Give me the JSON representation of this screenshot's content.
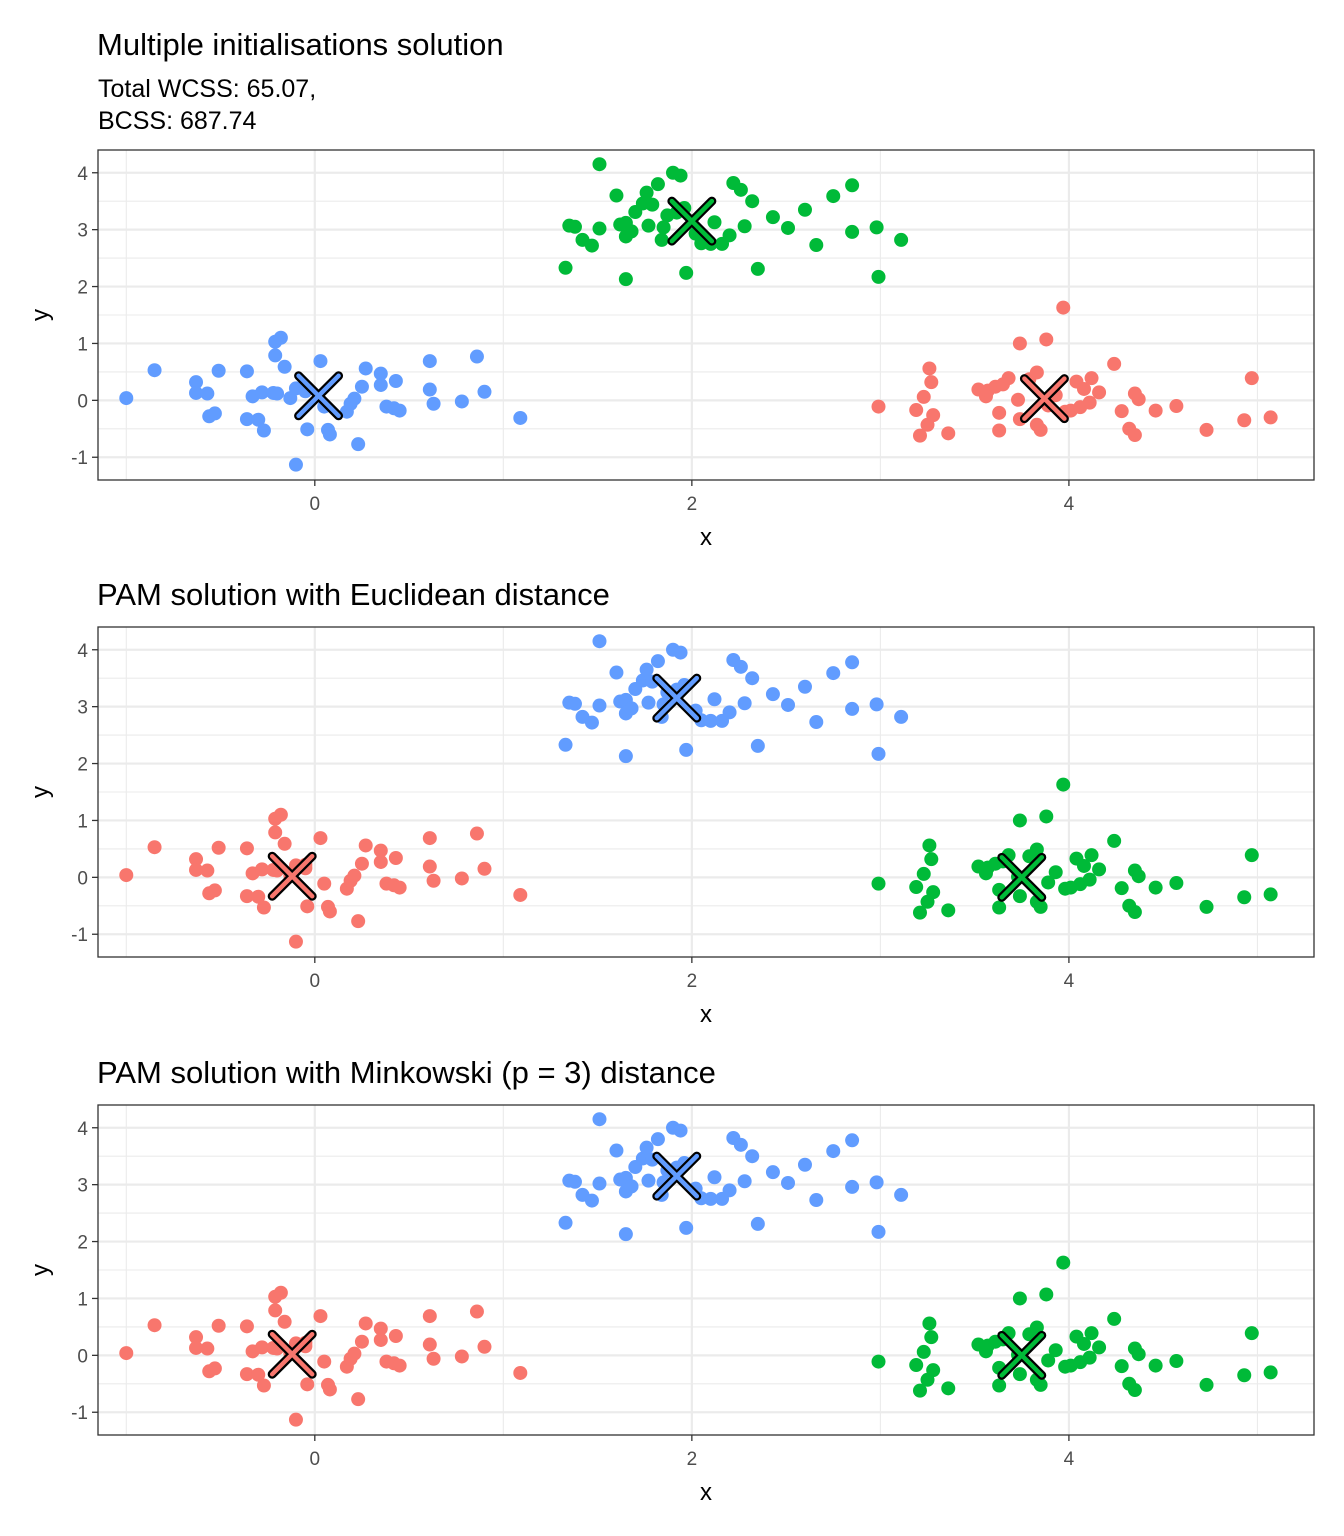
{
  "chart_data": [
    {
      "type": "scatter",
      "title": "Multiple initialisations solution",
      "subtitle_lines": [
        "Total WCSS: 65.07,",
        "BCSS: 687.74"
      ],
      "xlabel": "x",
      "ylabel": "y",
      "xlim": [
        -1.15,
        5.3
      ],
      "ylim": [
        -1.4,
        4.4
      ],
      "x_ticks": [
        0,
        2,
        4
      ],
      "y_ticks": [
        -1,
        0,
        1,
        2,
        3,
        4
      ],
      "x_tick_labels": [
        "0",
        "2",
        "4"
      ],
      "y_tick_labels": [
        "-1",
        "0",
        "1",
        "2",
        "3",
        "4"
      ],
      "grid": true,
      "legend": "none",
      "cluster_colors": {
        "left": "#619CFF",
        "top": "#00BA38",
        "right": "#F8766D"
      },
      "centers": {
        "left": {
          "x": 0.02,
          "y": 0.08
        },
        "top": {
          "x": 2.0,
          "y": 3.15
        },
        "right": {
          "x": 3.87,
          "y": 0.03
        }
      }
    },
    {
      "type": "scatter",
      "title": "PAM solution with Euclidean distance",
      "subtitle_lines": [],
      "xlabel": "x",
      "ylabel": "y",
      "xlim": [
        -1.15,
        5.3
      ],
      "ylim": [
        -1.4,
        4.4
      ],
      "x_ticks": [
        0,
        2,
        4
      ],
      "y_ticks": [
        -1,
        0,
        1,
        2,
        3,
        4
      ],
      "x_tick_labels": [
        "0",
        "2",
        "4"
      ],
      "y_tick_labels": [
        "-1",
        "0",
        "1",
        "2",
        "3",
        "4"
      ],
      "grid": true,
      "legend": "none",
      "cluster_colors": {
        "left": "#F8766D",
        "top": "#619CFF",
        "right": "#00BA38"
      },
      "centers": {
        "left": {
          "x": -0.12,
          "y": 0.02
        },
        "top": {
          "x": 1.92,
          "y": 3.15
        },
        "right": {
          "x": 3.75,
          "y": 0.0
        }
      }
    },
    {
      "type": "scatter",
      "title": "PAM solution with Minkowski (p = 3) distance",
      "subtitle_lines": [],
      "xlabel": "x",
      "ylabel": "y",
      "xlim": [
        -1.15,
        5.3
      ],
      "ylim": [
        -1.4,
        4.4
      ],
      "x_ticks": [
        0,
        2,
        4
      ],
      "y_ticks": [
        -1,
        0,
        1,
        2,
        3,
        4
      ],
      "x_tick_labels": [
        "0",
        "2",
        "4"
      ],
      "y_tick_labels": [
        "-1",
        "0",
        "1",
        "2",
        "3",
        "4"
      ],
      "grid": true,
      "legend": "none",
      "cluster_colors": {
        "left": "#F8766D",
        "top": "#619CFF",
        "right": "#00BA38"
      },
      "centers": {
        "left": {
          "x": -0.12,
          "y": 0.02
        },
        "top": {
          "x": 1.92,
          "y": 3.15
        },
        "right": {
          "x": 3.75,
          "y": 0.0
        }
      }
    }
  ],
  "points": {
    "left": [
      [
        -1.0,
        0.04
      ],
      [
        -0.85,
        0.53
      ],
      [
        -0.63,
        0.32
      ],
      [
        -0.63,
        0.13
      ],
      [
        -0.57,
        0.12
      ],
      [
        -0.56,
        -0.28
      ],
      [
        -0.53,
        -0.23
      ],
      [
        -0.51,
        0.52
      ],
      [
        -0.36,
        0.51
      ],
      [
        -0.36,
        -0.33
      ],
      [
        -0.33,
        0.07
      ],
      [
        -0.3,
        -0.34
      ],
      [
        -0.28,
        0.14
      ],
      [
        -0.27,
        -0.53
      ],
      [
        -0.22,
        0.13
      ],
      [
        -0.21,
        1.03
      ],
      [
        -0.21,
        0.79
      ],
      [
        -0.2,
        0.12
      ],
      [
        -0.18,
        1.1
      ],
      [
        -0.16,
        0.59
      ],
      [
        -0.13,
        0.04
      ],
      [
        -0.1,
        0.21
      ],
      [
        -0.1,
        -1.13
      ],
      [
        -0.05,
        0.22
      ],
      [
        -0.05,
        0.16
      ],
      [
        -0.04,
        -0.51
      ],
      [
        0.03,
        0.69
      ],
      [
        0.05,
        -0.11
      ],
      [
        0.07,
        -0.52
      ],
      [
        0.08,
        -0.6
      ],
      [
        0.17,
        -0.2
      ],
      [
        0.19,
        -0.06
      ],
      [
        0.21,
        0.03
      ],
      [
        0.23,
        -0.77
      ],
      [
        0.25,
        0.24
      ],
      [
        0.27,
        0.56
      ],
      [
        0.35,
        0.27
      ],
      [
        0.35,
        0.47
      ],
      [
        0.38,
        -0.11
      ],
      [
        0.42,
        -0.14
      ],
      [
        0.43,
        0.34
      ],
      [
        0.45,
        -0.18
      ],
      [
        0.61,
        0.69
      ],
      [
        0.61,
        0.19
      ],
      [
        0.63,
        -0.06
      ],
      [
        0.78,
        -0.02
      ],
      [
        0.86,
        0.77
      ],
      [
        0.9,
        0.15
      ],
      [
        1.09,
        -0.31
      ]
    ],
    "top": [
      [
        1.33,
        2.33
      ],
      [
        1.35,
        3.07
      ],
      [
        1.38,
        3.05
      ],
      [
        1.42,
        2.82
      ],
      [
        1.47,
        2.72
      ],
      [
        1.51,
        3.02
      ],
      [
        1.51,
        4.15
      ],
      [
        1.6,
        3.6
      ],
      [
        1.62,
        3.09
      ],
      [
        1.65,
        2.88
      ],
      [
        1.65,
        3.12
      ],
      [
        1.65,
        2.13
      ],
      [
        1.68,
        2.97
      ],
      [
        1.7,
        3.31
      ],
      [
        1.74,
        3.46
      ],
      [
        1.76,
        3.65
      ],
      [
        1.77,
        3.07
      ],
      [
        1.79,
        3.44
      ],
      [
        1.82,
        3.8
      ],
      [
        1.84,
        2.82
      ],
      [
        1.85,
        3.04
      ],
      [
        1.87,
        3.25
      ],
      [
        1.9,
        4.0
      ],
      [
        1.92,
        3.3
      ],
      [
        1.94,
        3.95
      ],
      [
        1.96,
        3.38
      ],
      [
        1.97,
        2.24
      ],
      [
        2.02,
        2.93
      ],
      [
        2.05,
        2.76
      ],
      [
        2.1,
        2.75
      ],
      [
        2.12,
        3.13
      ],
      [
        2.16,
        2.75
      ],
      [
        2.2,
        2.9
      ],
      [
        2.22,
        3.82
      ],
      [
        2.26,
        3.7
      ],
      [
        2.28,
        3.06
      ],
      [
        2.32,
        3.5
      ],
      [
        2.35,
        2.31
      ],
      [
        2.43,
        3.22
      ],
      [
        2.51,
        3.03
      ],
      [
        2.6,
        3.35
      ],
      [
        2.66,
        2.73
      ],
      [
        2.75,
        3.59
      ],
      [
        2.85,
        2.96
      ],
      [
        2.85,
        3.78
      ],
      [
        2.98,
        3.04
      ],
      [
        2.99,
        2.17
      ],
      [
        3.11,
        2.82
      ]
    ],
    "right": [
      [
        2.99,
        -0.11
      ],
      [
        3.19,
        -0.17
      ],
      [
        3.21,
        -0.62
      ],
      [
        3.23,
        0.06
      ],
      [
        3.25,
        -0.43
      ],
      [
        3.26,
        0.56
      ],
      [
        3.27,
        0.32
      ],
      [
        3.28,
        -0.26
      ],
      [
        3.36,
        -0.58
      ],
      [
        3.52,
        0.19
      ],
      [
        3.56,
        0.07
      ],
      [
        3.57,
        0.17
      ],
      [
        3.61,
        0.24
      ],
      [
        3.63,
        -0.22
      ],
      [
        3.63,
        -0.53
      ],
      [
        3.65,
        0.28
      ],
      [
        3.68,
        0.39
      ],
      [
        3.73,
        0.01
      ],
      [
        3.74,
        -0.33
      ],
      [
        3.74,
        1.0
      ],
      [
        3.79,
        0.37
      ],
      [
        3.83,
        -0.43
      ],
      [
        3.83,
        0.49
      ],
      [
        3.85,
        -0.52
      ],
      [
        3.88,
        1.07
      ],
      [
        3.89,
        -0.09
      ],
      [
        3.93,
        0.09
      ],
      [
        3.97,
        1.63
      ],
      [
        3.98,
        -0.2
      ],
      [
        4.01,
        -0.18
      ],
      [
        4.04,
        0.33
      ],
      [
        4.06,
        -0.12
      ],
      [
        4.08,
        0.2
      ],
      [
        4.11,
        -0.04
      ],
      [
        4.12,
        0.39
      ],
      [
        4.16,
        0.14
      ],
      [
        4.24,
        0.64
      ],
      [
        4.28,
        -0.19
      ],
      [
        4.32,
        -0.5
      ],
      [
        4.35,
        0.12
      ],
      [
        4.35,
        -0.61
      ],
      [
        4.37,
        0.02
      ],
      [
        4.46,
        -0.18
      ],
      [
        4.57,
        -0.1
      ],
      [
        4.73,
        -0.52
      ],
      [
        4.93,
        -0.35
      ],
      [
        4.97,
        0.39
      ],
      [
        5.07,
        -0.3
      ]
    ]
  }
}
